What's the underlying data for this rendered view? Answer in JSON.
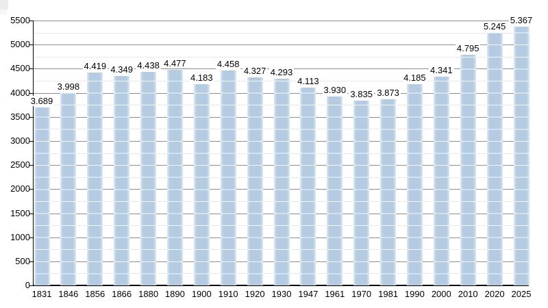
{
  "chart_data": {
    "type": "bar",
    "title": "",
    "xlabel": "",
    "ylabel": "",
    "categories": [
      "1831",
      "1846",
      "1856",
      "1866",
      "1880",
      "1890",
      "1900",
      "1910",
      "1920",
      "1930",
      "1947",
      "1961",
      "1970",
      "1981",
      "1990",
      "2000",
      "2010",
      "2020",
      "2025"
    ],
    "values": [
      3689,
      3998,
      4419,
      4349,
      4438,
      4477,
      4183,
      4458,
      4327,
      4293,
      4113,
      3930,
      3835,
      3873,
      4185,
      4341,
      4795,
      5245,
      5367
    ],
    "value_labels": [
      "3.689",
      "3.998",
      "4.419",
      "4.349",
      "4.438",
      "4.477",
      "4.183",
      "4.458",
      "4.327",
      "4.293",
      "4.113",
      "3.930",
      "3.835",
      "3.873",
      "4.185",
      "4.341",
      "4.795",
      "5.245",
      "5.367"
    ],
    "ylim": [
      0,
      5500
    ],
    "y_major_step": 500,
    "y_minor_step": 250,
    "y_tick_labels": [
      "0",
      "500",
      "1000",
      "1500",
      "2000",
      "2500",
      "3000",
      "3500",
      "4000",
      "4500",
      "5000",
      "5500"
    ],
    "grid": true,
    "legend": "none",
    "colors": {
      "bar_fill": "#b5cbe2",
      "bar_grid_overlay": "rgba(255,255,255,0.85)",
      "major_grid": "#8c8c8c",
      "minor_grid": "#e6e6e6",
      "axis": "#000000",
      "text": "#000000",
      "background": "#ffffff"
    }
  }
}
